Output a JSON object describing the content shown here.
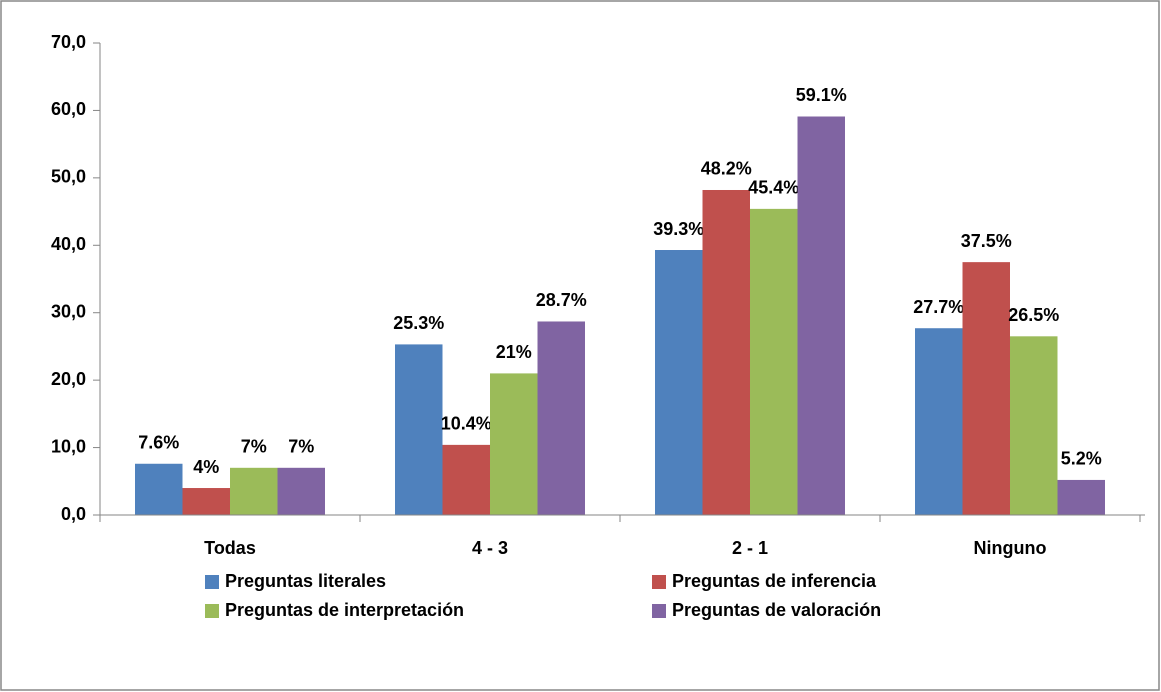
{
  "chart_data": {
    "type": "bar",
    "categories": [
      "Todas",
      "4 - 3",
      "2 - 1",
      "Ninguno"
    ],
    "series": [
      {
        "name": "Preguntas literales",
        "color": "#4f81bd",
        "values": [
          7.6,
          25.3,
          39.3,
          27.7
        ],
        "value_labels": [
          "7.6%",
          "25.3%",
          "39.3%",
          "27.7%"
        ]
      },
      {
        "name": "Preguntas de inferencia",
        "color": "#c0504d",
        "values": [
          4,
          10.4,
          48.2,
          37.5
        ],
        "value_labels": [
          "4%",
          "10.4%",
          "48.2%",
          "37.5%"
        ]
      },
      {
        "name": "Preguntas de interpretación",
        "color": "#9bbb59",
        "values": [
          7,
          21,
          45.4,
          26.5
        ],
        "value_labels": [
          "7%",
          "21%",
          "45.4%",
          "26.5%"
        ]
      },
      {
        "name": "Preguntas de valoración",
        "color": "#8064a2",
        "values": [
          7,
          28.7,
          59.1,
          5.2
        ],
        "value_labels": [
          "7%",
          "28.7%",
          "59.1%",
          "5.2%"
        ]
      }
    ],
    "ylim": [
      0,
      70
    ],
    "yticks": [
      {
        "value": 0,
        "label": "0,0"
      },
      {
        "value": 10,
        "label": "10,0"
      },
      {
        "value": 20,
        "label": "20,0"
      },
      {
        "value": 30,
        "label": "30,0"
      },
      {
        "value": 40,
        "label": "40,0"
      },
      {
        "value": 50,
        "label": "50,0"
      },
      {
        "value": 60,
        "label": "60,0"
      },
      {
        "value": 70,
        "label": "70,0"
      }
    ],
    "legend": "bottom"
  }
}
